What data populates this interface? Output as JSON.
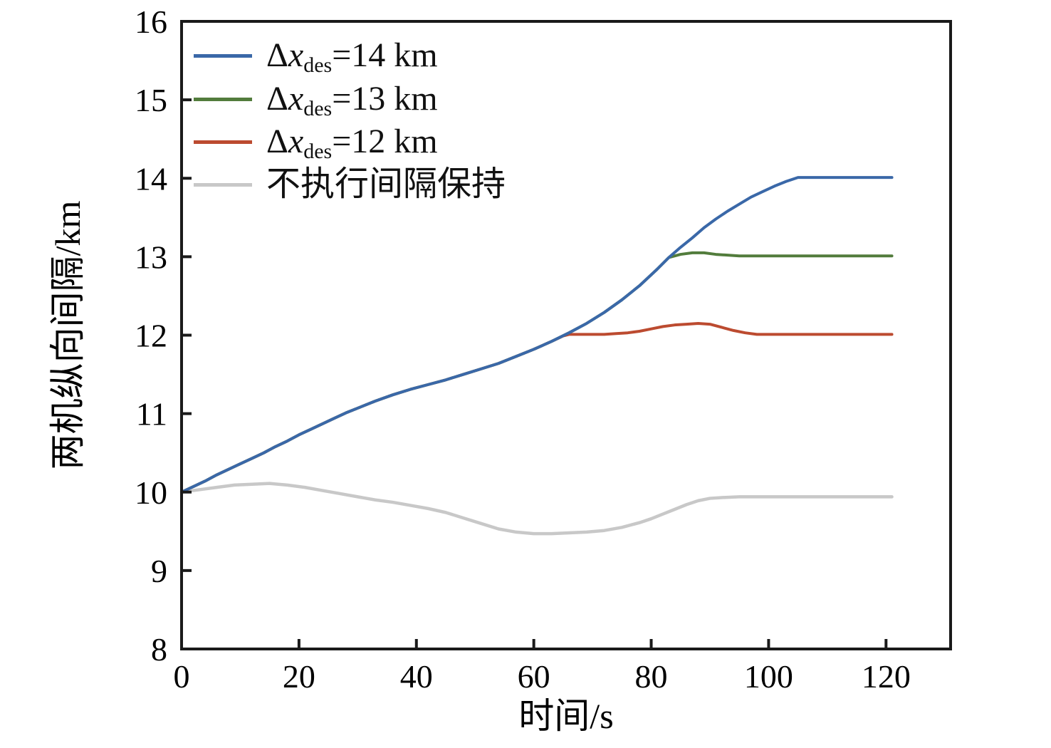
{
  "figure": {
    "background": "#ffffff",
    "axis_color": "#1a1a1a",
    "text_color": "#000000"
  },
  "axes": {
    "xlabel": "时间/s",
    "ylabel": "两机纵向间隔/km",
    "xlim": [
      0,
      131
    ],
    "ylim": [
      8,
      16
    ],
    "xticks": [
      0,
      20,
      40,
      60,
      80,
      100,
      120
    ],
    "yticks": [
      8,
      9,
      10,
      11,
      12,
      13,
      14,
      15,
      16
    ],
    "grid": false
  },
  "legend": {
    "position": "top-left-inside",
    "entries": [
      {
        "delta": "Δ",
        "variable": "x",
        "subscript": "des",
        "equals": "=14 km",
        "color": "#3a68a8",
        "series": "dx14"
      },
      {
        "delta": "Δ",
        "variable": "x",
        "subscript": "des",
        "equals": "=13 km",
        "color": "#527c3c",
        "series": "dx13"
      },
      {
        "delta": "Δ",
        "variable": "x",
        "subscript": "des",
        "equals": "=12 km",
        "color": "#bc4b30",
        "series": "dx12"
      },
      {
        "text": "不执行间隔保持",
        "color": "#c8c8c8",
        "series": "no_keep"
      }
    ]
  },
  "chart_data": {
    "type": "line",
    "title": "",
    "xlabel": "时间/s",
    "ylabel": "两机纵向间隔/km",
    "xlim": [
      0,
      131
    ],
    "ylim": [
      8,
      16
    ],
    "legend_position": "upper left",
    "series": [
      {
        "id": "no_keep",
        "name": "不执行间隔保持",
        "color": "#c8c8c8",
        "line_width": 4.5,
        "points": [
          [
            0,
            10.0
          ],
          [
            3,
            10.03
          ],
          [
            6,
            10.06
          ],
          [
            9,
            10.09
          ],
          [
            12,
            10.1
          ],
          [
            15,
            10.11
          ],
          [
            18,
            10.09
          ],
          [
            21,
            10.06
          ],
          [
            24,
            10.02
          ],
          [
            27,
            9.98
          ],
          [
            30,
            9.94
          ],
          [
            33,
            9.9
          ],
          [
            36,
            9.87
          ],
          [
            39,
            9.83
          ],
          [
            42,
            9.79
          ],
          [
            45,
            9.74
          ],
          [
            48,
            9.67
          ],
          [
            51,
            9.6
          ],
          [
            54,
            9.53
          ],
          [
            57,
            9.49
          ],
          [
            60,
            9.47
          ],
          [
            63,
            9.47
          ],
          [
            66,
            9.48
          ],
          [
            69,
            9.49
          ],
          [
            72,
            9.51
          ],
          [
            75,
            9.55
          ],
          [
            78,
            9.61
          ],
          [
            80,
            9.66
          ],
          [
            82,
            9.72
          ],
          [
            84,
            9.78
          ],
          [
            86,
            9.84
          ],
          [
            88,
            9.89
          ],
          [
            90,
            9.92
          ],
          [
            92,
            9.93
          ],
          [
            95,
            9.94
          ],
          [
            100,
            9.94
          ],
          [
            105,
            9.94
          ],
          [
            110,
            9.94
          ],
          [
            115,
            9.94
          ],
          [
            121,
            9.94
          ]
        ]
      },
      {
        "id": "dx12",
        "name": "Δx_des=12 km",
        "color": "#bc4b30",
        "line_width": 4,
        "points": [
          [
            0,
            10.0
          ],
          [
            2,
            10.07
          ],
          [
            4,
            10.14
          ],
          [
            6,
            10.22
          ],
          [
            8,
            10.29
          ],
          [
            10,
            10.36
          ],
          [
            12,
            10.43
          ],
          [
            14,
            10.5
          ],
          [
            16,
            10.58
          ],
          [
            18,
            10.65
          ],
          [
            20,
            10.73
          ],
          [
            22,
            10.8
          ],
          [
            24,
            10.87
          ],
          [
            26,
            10.94
          ],
          [
            28,
            11.01
          ],
          [
            30,
            11.07
          ],
          [
            33,
            11.16
          ],
          [
            36,
            11.24
          ],
          [
            39,
            11.31
          ],
          [
            42,
            11.37
          ],
          [
            45,
            11.43
          ],
          [
            48,
            11.5
          ],
          [
            51,
            11.57
          ],
          [
            54,
            11.64
          ],
          [
            57,
            11.73
          ],
          [
            60,
            11.82
          ],
          [
            63,
            11.92
          ],
          [
            65,
            11.99
          ],
          [
            66,
            12.01
          ],
          [
            68,
            12.01
          ],
          [
            70,
            12.01
          ],
          [
            72,
            12.01
          ],
          [
            74,
            12.02
          ],
          [
            76,
            12.03
          ],
          [
            78,
            12.05
          ],
          [
            80,
            12.08
          ],
          [
            82,
            12.11
          ],
          [
            84,
            12.13
          ],
          [
            86,
            12.14
          ],
          [
            88,
            12.15
          ],
          [
            90,
            12.14
          ],
          [
            92,
            12.1
          ],
          [
            94,
            12.06
          ],
          [
            96,
            12.03
          ],
          [
            98,
            12.01
          ],
          [
            100,
            12.01
          ],
          [
            105,
            12.01
          ],
          [
            110,
            12.01
          ],
          [
            115,
            12.01
          ],
          [
            121,
            12.01
          ]
        ]
      },
      {
        "id": "dx13",
        "name": "Δx_des=13 km",
        "color": "#527c3c",
        "line_width": 4,
        "points": [
          [
            0,
            10.0
          ],
          [
            2,
            10.07
          ],
          [
            4,
            10.14
          ],
          [
            6,
            10.22
          ],
          [
            8,
            10.29
          ],
          [
            10,
            10.36
          ],
          [
            12,
            10.43
          ],
          [
            14,
            10.5
          ],
          [
            16,
            10.58
          ],
          [
            18,
            10.65
          ],
          [
            20,
            10.73
          ],
          [
            22,
            10.8
          ],
          [
            24,
            10.87
          ],
          [
            26,
            10.94
          ],
          [
            28,
            11.01
          ],
          [
            30,
            11.07
          ],
          [
            33,
            11.16
          ],
          [
            36,
            11.24
          ],
          [
            39,
            11.31
          ],
          [
            42,
            11.37
          ],
          [
            45,
            11.43
          ],
          [
            48,
            11.5
          ],
          [
            51,
            11.57
          ],
          [
            54,
            11.64
          ],
          [
            57,
            11.73
          ],
          [
            60,
            11.82
          ],
          [
            63,
            11.92
          ],
          [
            66,
            12.03
          ],
          [
            69,
            12.15
          ],
          [
            72,
            12.29
          ],
          [
            75,
            12.45
          ],
          [
            78,
            12.63
          ],
          [
            81,
            12.84
          ],
          [
            83,
            12.99
          ],
          [
            85,
            13.03
          ],
          [
            87,
            13.05
          ],
          [
            89,
            13.05
          ],
          [
            91,
            13.03
          ],
          [
            93,
            13.02
          ],
          [
            95,
            13.01
          ],
          [
            97,
            13.01
          ],
          [
            100,
            13.01
          ],
          [
            105,
            13.01
          ],
          [
            110,
            13.01
          ],
          [
            115,
            13.01
          ],
          [
            121,
            13.01
          ]
        ]
      },
      {
        "id": "dx14",
        "name": "Δx_des=14 km",
        "color": "#3a68a8",
        "line_width": 4,
        "points": [
          [
            0,
            10.0
          ],
          [
            2,
            10.07
          ],
          [
            4,
            10.14
          ],
          [
            6,
            10.22
          ],
          [
            8,
            10.29
          ],
          [
            10,
            10.36
          ],
          [
            12,
            10.43
          ],
          [
            14,
            10.5
          ],
          [
            16,
            10.58
          ],
          [
            18,
            10.65
          ],
          [
            20,
            10.73
          ],
          [
            22,
            10.8
          ],
          [
            24,
            10.87
          ],
          [
            26,
            10.94
          ],
          [
            28,
            11.01
          ],
          [
            30,
            11.07
          ],
          [
            33,
            11.16
          ],
          [
            36,
            11.24
          ],
          [
            39,
            11.31
          ],
          [
            42,
            11.37
          ],
          [
            45,
            11.43
          ],
          [
            48,
            11.5
          ],
          [
            51,
            11.57
          ],
          [
            54,
            11.64
          ],
          [
            57,
            11.73
          ],
          [
            60,
            11.82
          ],
          [
            63,
            11.92
          ],
          [
            66,
            12.03
          ],
          [
            69,
            12.15
          ],
          [
            72,
            12.29
          ],
          [
            75,
            12.45
          ],
          [
            78,
            12.63
          ],
          [
            81,
            12.84
          ],
          [
            83,
            12.99
          ],
          [
            85,
            13.12
          ],
          [
            87,
            13.24
          ],
          [
            89,
            13.37
          ],
          [
            91,
            13.48
          ],
          [
            93,
            13.58
          ],
          [
            95,
            13.67
          ],
          [
            97,
            13.76
          ],
          [
            99,
            13.83
          ],
          [
            101,
            13.9
          ],
          [
            103,
            13.96
          ],
          [
            105,
            14.01
          ],
          [
            110,
            14.01
          ],
          [
            115,
            14.01
          ],
          [
            121,
            14.01
          ]
        ]
      }
    ]
  }
}
